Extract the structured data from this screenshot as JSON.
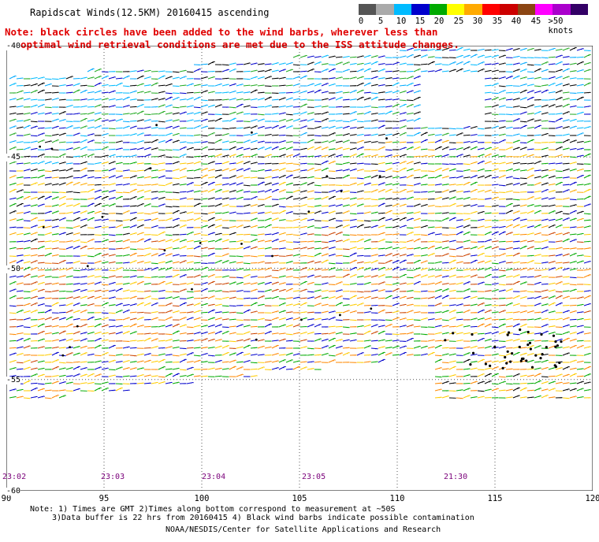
{
  "title": "Rapidscat Winds(12.5KM) 20160415 ascending",
  "note": {
    "line1": "Note: black circles have been added to the wind barbs, wherever less than",
    "line2": "optimal wind retrieval conditions are met due to the ISS attitude changes."
  },
  "colorbar": {
    "colors": [
      "#555555",
      "#aaaaaa",
      "#00bbff",
      "#0000cc",
      "#00aa00",
      "#ffff00",
      "#ffaa00",
      "#ff0000",
      "#cc0000",
      "#8b4513",
      "#ff00ff",
      "#aa00cc",
      "#330066"
    ],
    "labels": [
      "0",
      "5",
      "10",
      "15",
      "20",
      "25",
      "30",
      "35",
      "40",
      "45",
      ">50 knots"
    ]
  },
  "map": {
    "lon_labels": [
      "90",
      "95",
      "100",
      "105",
      "110",
      "115",
      "120"
    ],
    "lat_labels": [
      "-40",
      "-45",
      "-50",
      "-55",
      "-60"
    ],
    "time_labels": [
      "23:02",
      "23:03",
      "23:04",
      "23:05",
      "21:30"
    ]
  },
  "footer": {
    "line1": "Note: 1) Times are GMT 2)Times along bottom correspond to measurement at ~50S",
    "line2": "3)Data buffer is 22 hrs from 20160415 4) Black wind barbs indicate possible contamination",
    "line3": "NOAA/NESDIS/Center for Satellite Applications and Research"
  }
}
